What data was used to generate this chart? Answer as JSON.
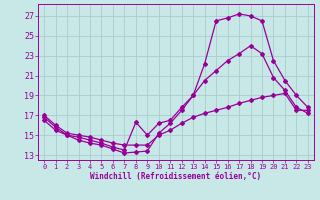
{
  "xlabel": "Windchill (Refroidissement éolien,°C)",
  "background_color": "#c8e8e8",
  "grid_color": "#aacccc",
  "line_color": "#990099",
  "x_ticks": [
    0,
    1,
    2,
    3,
    4,
    5,
    6,
    7,
    8,
    9,
    10,
    11,
    12,
    13,
    14,
    15,
    16,
    17,
    18,
    19,
    20,
    21,
    22,
    23
  ],
  "y_ticks": [
    13,
    15,
    17,
    19,
    21,
    23,
    25,
    27
  ],
  "ylim": [
    12.5,
    28.2
  ],
  "xlim": [
    -0.5,
    23.5
  ],
  "curve1_x": [
    0,
    1,
    2,
    3,
    4,
    5,
    6,
    7,
    8,
    9,
    10,
    11,
    12,
    13,
    14,
    15,
    16,
    17,
    18,
    19,
    20,
    21,
    22,
    23
  ],
  "curve1_y": [
    16.8,
    15.8,
    15.0,
    14.5,
    14.2,
    14.0,
    13.6,
    13.2,
    13.3,
    13.4,
    15.2,
    16.2,
    17.5,
    19.0,
    22.2,
    26.5,
    26.8,
    27.2,
    27.0,
    26.5,
    22.5,
    20.5,
    19.0,
    17.8
  ],
  "curve2_x": [
    0,
    1,
    2,
    3,
    4,
    5,
    6,
    7,
    8,
    9,
    10,
    11,
    12,
    13,
    14,
    15,
    16,
    17,
    18,
    19,
    20,
    21,
    22,
    23
  ],
  "curve2_y": [
    16.5,
    15.5,
    15.0,
    14.8,
    14.5,
    14.2,
    13.8,
    13.5,
    16.3,
    15.0,
    16.2,
    16.5,
    17.8,
    19.0,
    20.5,
    21.5,
    22.5,
    23.2,
    24.0,
    23.2,
    20.8,
    19.5,
    17.8,
    17.2
  ],
  "curve3_x": [
    0,
    1,
    2,
    3,
    4,
    5,
    6,
    7,
    8,
    9,
    10,
    11,
    12,
    13,
    14,
    15,
    16,
    17,
    18,
    19,
    20,
    21,
    22,
    23
  ],
  "curve3_y": [
    17.0,
    16.0,
    15.2,
    15.0,
    14.8,
    14.5,
    14.2,
    14.0,
    14.0,
    14.0,
    15.0,
    15.5,
    16.2,
    16.8,
    17.2,
    17.5,
    17.8,
    18.2,
    18.5,
    18.8,
    19.0,
    19.2,
    17.5,
    17.5
  ]
}
